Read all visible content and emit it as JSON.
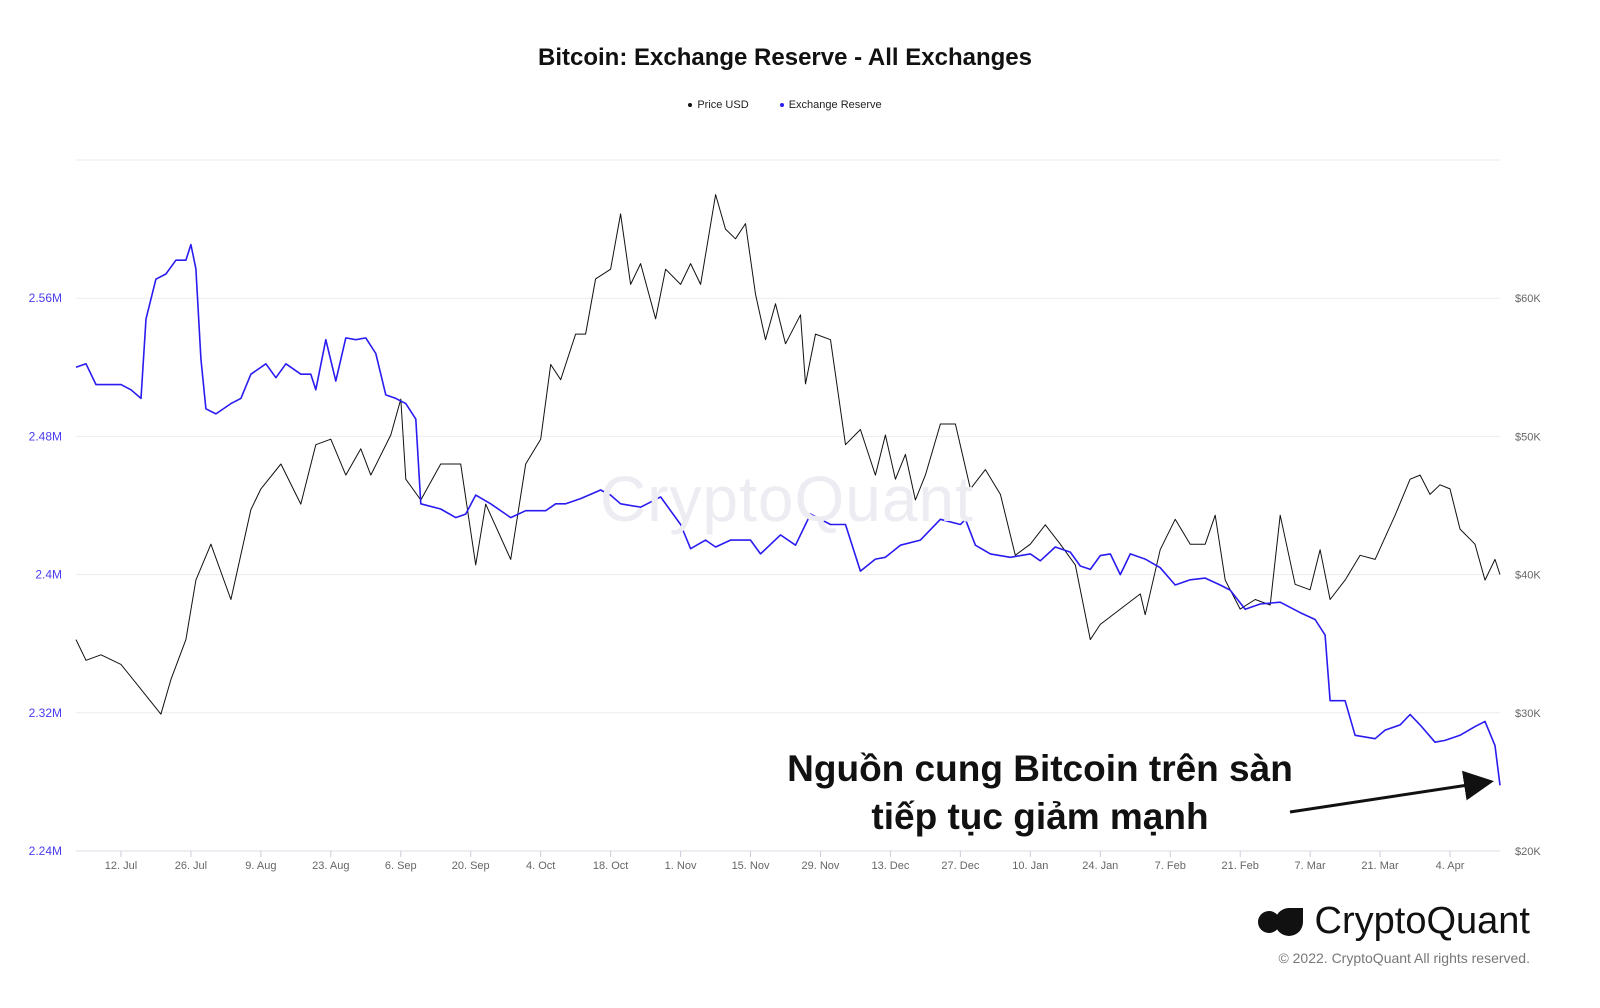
{
  "chart_data": {
    "type": "line",
    "title": "Bitcoin: Exchange Reserve - All Exchanges",
    "x_unit": "days since 3 Jul 2021",
    "xlim": [
      0,
      285
    ],
    "x_ticks": [
      {
        "day": 9,
        "label": "12. Jul"
      },
      {
        "day": 23,
        "label": "26. Jul"
      },
      {
        "day": 37,
        "label": "9. Aug"
      },
      {
        "day": 51,
        "label": "23. Aug"
      },
      {
        "day": 65,
        "label": "6. Sep"
      },
      {
        "day": 79,
        "label": "20. Sep"
      },
      {
        "day": 93,
        "label": "4. Oct"
      },
      {
        "day": 107,
        "label": "18. Oct"
      },
      {
        "day": 121,
        "label": "1. Nov"
      },
      {
        "day": 135,
        "label": "15. Nov"
      },
      {
        "day": 149,
        "label": "29. Nov"
      },
      {
        "day": 163,
        "label": "13. Dec"
      },
      {
        "day": 177,
        "label": "27. Dec"
      },
      {
        "day": 191,
        "label": "10. Jan"
      },
      {
        "day": 205,
        "label": "24. Jan"
      },
      {
        "day": 219,
        "label": "7. Feb"
      },
      {
        "day": 233,
        "label": "21. Feb"
      },
      {
        "day": 247,
        "label": "7. Mar"
      },
      {
        "day": 261,
        "label": "21. Mar"
      },
      {
        "day": 275,
        "label": "4. Apr"
      }
    ],
    "y_left": {
      "label": "Exchange Reserve",
      "ylim": [
        2.24,
        2.64
      ],
      "ticks": [
        {
          "v": 2.24,
          "label": "2.24M"
        },
        {
          "v": 2.32,
          "label": "2.32M"
        },
        {
          "v": 2.4,
          "label": "2.4M"
        },
        {
          "v": 2.48,
          "label": "2.48M"
        },
        {
          "v": 2.56,
          "label": "2.56M"
        }
      ]
    },
    "y_right": {
      "label": "Price USD",
      "ylim": [
        20,
        70
      ],
      "ticks": [
        {
          "v": 20,
          "label": "$20K"
        },
        {
          "v": 30,
          "label": "$30K"
        },
        {
          "v": 40,
          "label": "$40K"
        },
        {
          "v": 50,
          "label": "$50K"
        },
        {
          "v": 60,
          "label": "$60K"
        }
      ]
    },
    "grid": true,
    "legend_position": "top-center",
    "series": [
      {
        "name": "Price USD",
        "axis": "right",
        "color": "#111111",
        "unit": "K USD",
        "points": [
          [
            0,
            35.3
          ],
          [
            2,
            33.8
          ],
          [
            5,
            34.2
          ],
          [
            9,
            33.5
          ],
          [
            13,
            31.7
          ],
          [
            17,
            29.9
          ],
          [
            19,
            32.4
          ],
          [
            22,
            35.3
          ],
          [
            24,
            39.6
          ],
          [
            27,
            42.2
          ],
          [
            31,
            38.2
          ],
          [
            35,
            44.7
          ],
          [
            37,
            46.2
          ],
          [
            41,
            48.0
          ],
          [
            45,
            45.1
          ],
          [
            48,
            49.4
          ],
          [
            51,
            49.8
          ],
          [
            54,
            47.2
          ],
          [
            57,
            49.1
          ],
          [
            59,
            47.2
          ],
          [
            63,
            50.1
          ],
          [
            65,
            52.7
          ],
          [
            66,
            46.9
          ],
          [
            69,
            45.4
          ],
          [
            73,
            48.0
          ],
          [
            77,
            48.0
          ],
          [
            80,
            40.7
          ],
          [
            82,
            45.1
          ],
          [
            87,
            41.1
          ],
          [
            90,
            48.0
          ],
          [
            93,
            49.8
          ],
          [
            95,
            55.2
          ],
          [
            97,
            54.1
          ],
          [
            100,
            57.4
          ],
          [
            102,
            57.4
          ],
          [
            104,
            61.4
          ],
          [
            107,
            62.1
          ],
          [
            109,
            66.1
          ],
          [
            111,
            61.0
          ],
          [
            113,
            62.5
          ],
          [
            116,
            58.5
          ],
          [
            118,
            62.1
          ],
          [
            121,
            61.0
          ],
          [
            123,
            62.5
          ],
          [
            125,
            61.0
          ],
          [
            128,
            67.5
          ],
          [
            130,
            65.0
          ],
          [
            132,
            64.3
          ],
          [
            134,
            65.4
          ],
          [
            136,
            60.3
          ],
          [
            138,
            57.0
          ],
          [
            140,
            59.6
          ],
          [
            142,
            56.7
          ],
          [
            145,
            58.8
          ],
          [
            146,
            53.8
          ],
          [
            148,
            57.4
          ],
          [
            151,
            57.0
          ],
          [
            154,
            49.4
          ],
          [
            157,
            50.5
          ],
          [
            160,
            47.2
          ],
          [
            162,
            50.1
          ],
          [
            164,
            46.9
          ],
          [
            166,
            48.7
          ],
          [
            168,
            45.4
          ],
          [
            170,
            47.2
          ],
          [
            173,
            50.9
          ],
          [
            176,
            50.9
          ],
          [
            179,
            46.2
          ],
          [
            182,
            47.6
          ],
          [
            185,
            45.8
          ],
          [
            188,
            41.4
          ],
          [
            191,
            42.2
          ],
          [
            194,
            43.6
          ],
          [
            197,
            42.2
          ],
          [
            200,
            40.7
          ],
          [
            203,
            35.3
          ],
          [
            205,
            36.4
          ],
          [
            209,
            37.5
          ],
          [
            213,
            38.6
          ],
          [
            214,
            37.1
          ],
          [
            217,
            41.8
          ],
          [
            220,
            44.0
          ],
          [
            223,
            42.2
          ],
          [
            226,
            42.2
          ],
          [
            228,
            44.3
          ],
          [
            230,
            39.6
          ],
          [
            233,
            37.5
          ],
          [
            236,
            38.2
          ],
          [
            239,
            37.8
          ],
          [
            241,
            44.3
          ],
          [
            244,
            39.3
          ],
          [
            247,
            38.9
          ],
          [
            249,
            41.8
          ],
          [
            251,
            38.2
          ],
          [
            254,
            39.6
          ],
          [
            257,
            41.4
          ],
          [
            260,
            41.1
          ],
          [
            264,
            44.3
          ],
          [
            267,
            46.9
          ],
          [
            269,
            47.2
          ],
          [
            271,
            45.8
          ],
          [
            273,
            46.5
          ],
          [
            275,
            46.2
          ],
          [
            277,
            43.3
          ],
          [
            280,
            42.2
          ],
          [
            282,
            39.6
          ],
          [
            284,
            41.1
          ],
          [
            285,
            40.0
          ]
        ]
      },
      {
        "name": "Exchange Reserve",
        "axis": "left",
        "color": "#2a1cf0",
        "unit": "M BTC",
        "points": [
          [
            0,
            2.52
          ],
          [
            2,
            2.522
          ],
          [
            4,
            2.51
          ],
          [
            6,
            2.51
          ],
          [
            9,
            2.51
          ],
          [
            11,
            2.507
          ],
          [
            13,
            2.502
          ],
          [
            14,
            2.548
          ],
          [
            16,
            2.571
          ],
          [
            18,
            2.574
          ],
          [
            20,
            2.582
          ],
          [
            22,
            2.582
          ],
          [
            23,
            2.591
          ],
          [
            24,
            2.577
          ],
          [
            25,
            2.525
          ],
          [
            26,
            2.496
          ],
          [
            28,
            2.493
          ],
          [
            31,
            2.499
          ],
          [
            33,
            2.502
          ],
          [
            35,
            2.516
          ],
          [
            38,
            2.522
          ],
          [
            40,
            2.514
          ],
          [
            42,
            2.522
          ],
          [
            45,
            2.516
          ],
          [
            47,
            2.516
          ],
          [
            48,
            2.507
          ],
          [
            50,
            2.536
          ],
          [
            52,
            2.512
          ],
          [
            54,
            2.537
          ],
          [
            56,
            2.536
          ],
          [
            58,
            2.537
          ],
          [
            60,
            2.528
          ],
          [
            62,
            2.504
          ],
          [
            64,
            2.502
          ],
          [
            66,
            2.499
          ],
          [
            68,
            2.49
          ],
          [
            69,
            2.441
          ],
          [
            73,
            2.438
          ],
          [
            76,
            2.433
          ],
          [
            78,
            2.435
          ],
          [
            80,
            2.446
          ],
          [
            83,
            2.441
          ],
          [
            87,
            2.433
          ],
          [
            90,
            2.437
          ],
          [
            94,
            2.437
          ],
          [
            96,
            2.441
          ],
          [
            98,
            2.441
          ],
          [
            101,
            2.444
          ],
          [
            105,
            2.449
          ],
          [
            107,
            2.446
          ],
          [
            109,
            2.441
          ],
          [
            113,
            2.439
          ],
          [
            117,
            2.445
          ],
          [
            121,
            2.429
          ],
          [
            123,
            2.415
          ],
          [
            126,
            2.42
          ],
          [
            128,
            2.416
          ],
          [
            131,
            2.42
          ],
          [
            135,
            2.42
          ],
          [
            137,
            2.412
          ],
          [
            141,
            2.423
          ],
          [
            144,
            2.417
          ],
          [
            147,
            2.435
          ],
          [
            151,
            2.429
          ],
          [
            154,
            2.429
          ],
          [
            157,
            2.402
          ],
          [
            160,
            2.409
          ],
          [
            162,
            2.41
          ],
          [
            165,
            2.417
          ],
          [
            169,
            2.42
          ],
          [
            173,
            2.432
          ],
          [
            177,
            2.429
          ],
          [
            178,
            2.432
          ],
          [
            180,
            2.417
          ],
          [
            183,
            2.412
          ],
          [
            187,
            2.41
          ],
          [
            191,
            2.412
          ],
          [
            193,
            2.408
          ],
          [
            196,
            2.416
          ],
          [
            199,
            2.413
          ],
          [
            201,
            2.405
          ],
          [
            203,
            2.403
          ],
          [
            205,
            2.411
          ],
          [
            207,
            2.412
          ],
          [
            209,
            2.4
          ],
          [
            211,
            2.412
          ],
          [
            214,
            2.409
          ],
          [
            217,
            2.404
          ],
          [
            220,
            2.394
          ],
          [
            223,
            2.397
          ],
          [
            226,
            2.398
          ],
          [
            229,
            2.394
          ],
          [
            231,
            2.391
          ],
          [
            234,
            2.38
          ],
          [
            237,
            2.383
          ],
          [
            241,
            2.384
          ],
          [
            245,
            2.378
          ],
          [
            248,
            2.374
          ],
          [
            250,
            2.365
          ],
          [
            251,
            2.327
          ],
          [
            254,
            2.327
          ],
          [
            256,
            2.307
          ],
          [
            260,
            2.305
          ],
          [
            262,
            2.31
          ],
          [
            265,
            2.313
          ],
          [
            267,
            2.319
          ],
          [
            269,
            2.313
          ],
          [
            272,
            2.303
          ],
          [
            274,
            2.304
          ],
          [
            277,
            2.307
          ],
          [
            280,
            2.312
          ],
          [
            282,
            2.315
          ],
          [
            284,
            2.301
          ],
          [
            285,
            2.278
          ]
        ]
      }
    ],
    "annotation": {
      "line1": "Nguồn cung Bitcoin trên sàn",
      "line2": "tiếp tục giảm mạnh"
    }
  },
  "watermark": "CryptoQuant",
  "branding": {
    "logo_text": "CryptoQuant",
    "copyright": "© 2022. CryptoQuant All rights reserved."
  }
}
